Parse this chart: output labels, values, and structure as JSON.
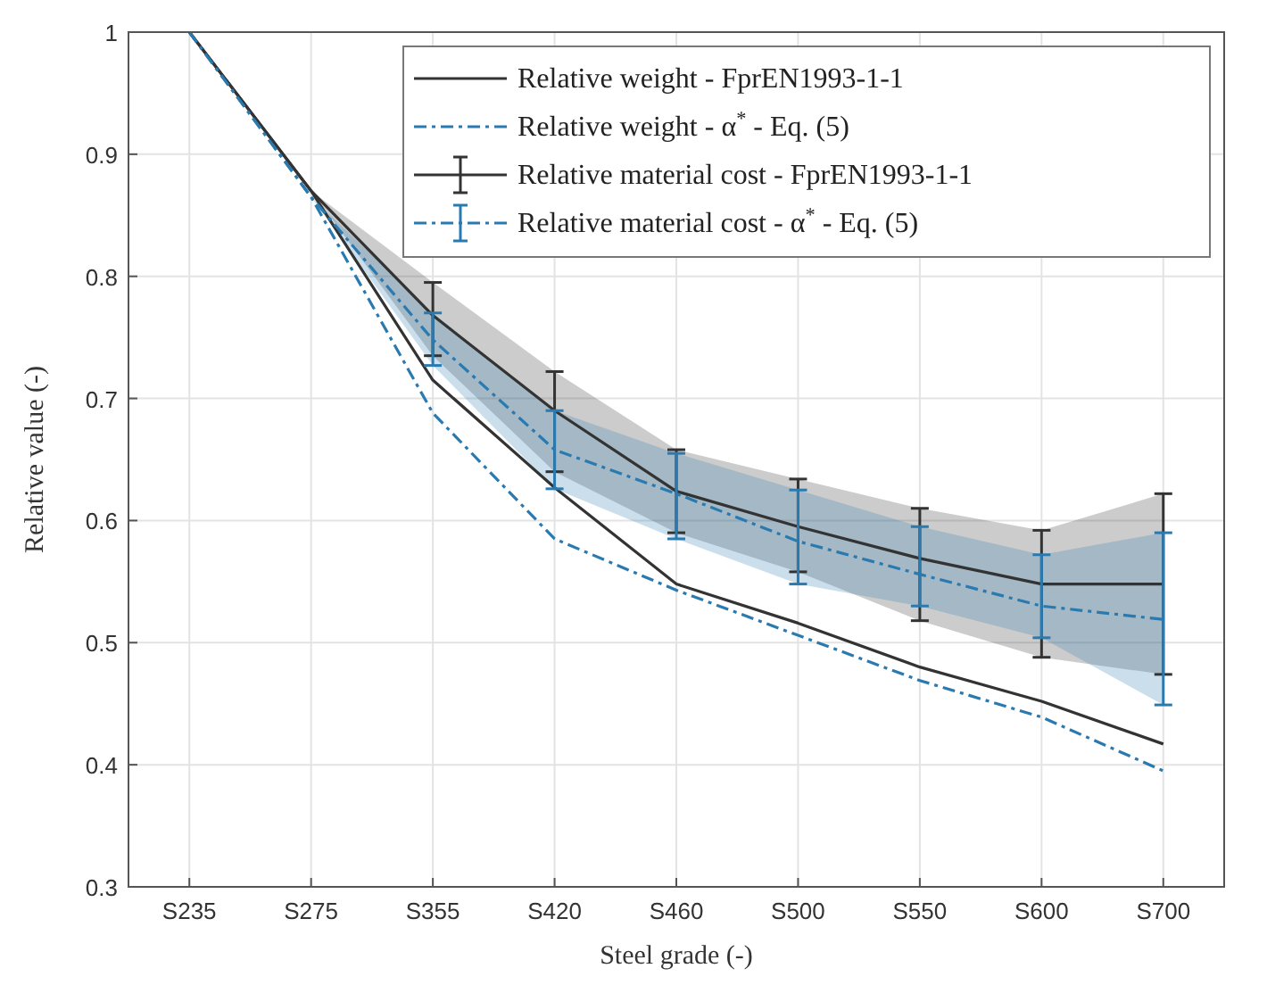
{
  "chart_data": {
    "type": "line",
    "xlabel": "Steel grade (-)",
    "ylabel": "Relative value (-)",
    "categories": [
      "S235",
      "S275",
      "S355",
      "S420",
      "S460",
      "S500",
      "S550",
      "S600",
      "S700"
    ],
    "ylim": [
      0.3,
      1
    ],
    "yticks": [
      0.3,
      0.4,
      0.5,
      0.6,
      0.7,
      0.8,
      0.9,
      1
    ],
    "grid": true,
    "legend": "top right",
    "marker": "none",
    "series": [
      {
        "name": "Relative weight - FprEN1993-1-1",
        "color": "#333333",
        "line_style": "solid",
        "values": [
          1,
          0.87,
          0.715,
          0.627,
          0.548,
          0.516,
          0.48,
          0.452,
          0.417
        ]
      },
      {
        "name": "Relative weight - α$^{*}$ - Eq. (5)",
        "color": "#2a7ab0",
        "line_style": "dashed",
        "values": [
          1,
          0.865,
          0.688,
          0.585,
          0.543,
          0.506,
          0.469,
          0.439,
          0.395
        ]
      },
      {
        "name": "Relative material cost - FprEN1993-1-1",
        "color": "#333333",
        "line_style": "solid",
        "values": [
          1,
          0.87,
          0.768,
          0.69,
          0.624,
          0.595,
          0.569,
          0.548,
          0.548
        ],
        "errors": [
          null,
          null,
          [
            0.735,
            0.795
          ],
          [
            0.64,
            0.722
          ],
          [
            0.59,
            0.658
          ],
          [
            0.558,
            0.634
          ],
          [
            0.518,
            0.61
          ],
          [
            0.488,
            0.592
          ],
          [
            0.474,
            0.622
          ]
        ],
        "lower": [
          1,
          0.87,
          0.735,
          0.64,
          0.59,
          0.558,
          0.518,
          0.488,
          0.474
        ],
        "upper": [
          1,
          0.87,
          0.795,
          0.722,
          0.658,
          0.634,
          0.61,
          0.592,
          0.622
        ]
      },
      {
        "name": "Relative material cost - α$^{*}$ - Eq. (5)",
        "color": "#2a7ab0",
        "line_style": "dashed",
        "values": [
          1,
          0.865,
          0.748,
          0.658,
          0.622,
          0.583,
          0.556,
          0.53,
          0.519
        ],
        "errors": [
          null,
          null,
          [
            0.727,
            0.77
          ],
          [
            0.626,
            0.69
          ],
          [
            0.585,
            0.655
          ],
          [
            0.548,
            0.625
          ],
          [
            0.53,
            0.595
          ],
          [
            0.504,
            0.572
          ],
          [
            0.449,
            0.59
          ]
        ],
        "lower": [
          1,
          0.865,
          0.727,
          0.626,
          0.585,
          0.548,
          0.53,
          0.504,
          0.449
        ],
        "upper": [
          1,
          0.865,
          0.77,
          0.69,
          0.655,
          0.625,
          0.595,
          0.572,
          0.59
        ]
      }
    ]
  }
}
